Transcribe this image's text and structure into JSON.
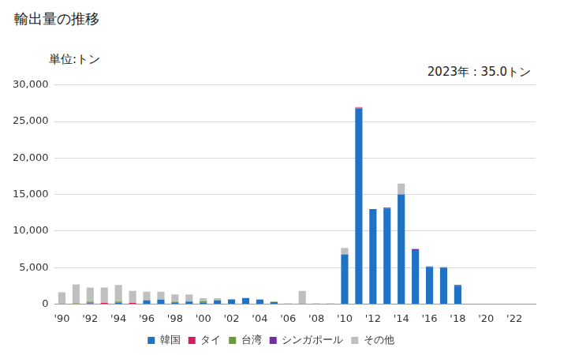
{
  "chart_data": {
    "type": "bar",
    "title": "輸出量の推移",
    "ylabel": "単位:トン",
    "annotations": [
      "2023年 : 35.0トン"
    ],
    "stacked": true,
    "grid": true,
    "legend": "bottom",
    "categories": [
      "'90",
      null,
      "'92",
      null,
      "'94",
      null,
      "'96",
      null,
      "'98",
      null,
      "'00",
      null,
      "'02",
      null,
      "'04",
      null,
      "'06",
      null,
      "'08",
      null,
      "'10",
      null,
      "'12",
      null,
      "'14",
      null,
      "'16",
      null,
      "'18",
      null,
      "'20",
      null,
      "'22",
      null
    ],
    "ylim": [
      0,
      30000
    ],
    "yticks": [
      0,
      {
        "value": 5000,
        "label": "5,000"
      },
      {
        "value": 10000,
        "label": "10,000"
      },
      {
        "value": 15000,
        "label": "15,000"
      },
      {
        "value": 20000,
        "label": "20,000"
      },
      {
        "value": 25000,
        "label": "25,000"
      },
      {
        "value": 30000,
        "label": "30,000"
      }
    ],
    "series": [
      {
        "name": "韓国",
        "color": "#1f72c4",
        "values": [
          0,
          0,
          100,
          0,
          200,
          0,
          500,
          600,
          150,
          350,
          200,
          500,
          600,
          800,
          600,
          250,
          0,
          0,
          0,
          0,
          6800,
          26800,
          13000,
          13100,
          15000,
          7400,
          5100,
          5000,
          2500,
          0,
          0,
          0,
          0,
          0
        ]
      },
      {
        "name": "タイ",
        "color": "#d81b60",
        "values": [
          0,
          0,
          100,
          150,
          0,
          150,
          0,
          0,
          0,
          0,
          0,
          0,
          0,
          0,
          0,
          0,
          0,
          0,
          0,
          0,
          0,
          100,
          0,
          0,
          0,
          0,
          0,
          0,
          0,
          0,
          0,
          0,
          0,
          0
        ]
      },
      {
        "name": "台湾",
        "color": "#6b9a3a",
        "values": [
          50,
          100,
          100,
          0,
          150,
          0,
          0,
          0,
          150,
          0,
          200,
          0,
          0,
          0,
          0,
          50,
          0,
          0,
          0,
          0,
          0,
          0,
          0,
          0,
          0,
          0,
          0,
          0,
          0,
          0,
          0,
          0,
          0,
          0
        ]
      },
      {
        "name": "シンガポール",
        "color": "#7030a0",
        "values": [
          0,
          0,
          0,
          0,
          0,
          0,
          0,
          0,
          0,
          0,
          0,
          0,
          0,
          0,
          0,
          0,
          0,
          0,
          0,
          0,
          0,
          0,
          0,
          100,
          0,
          100,
          0,
          0,
          100,
          0,
          0,
          0,
          0,
          0
        ]
      },
      {
        "name": "その他",
        "color": "#bfbfbf",
        "values": [
          1550,
          2600,
          1950,
          2100,
          2250,
          1650,
          1200,
          1100,
          1000,
          950,
          400,
          300,
          100,
          50,
          50,
          50,
          100,
          1800,
          100,
          100,
          900,
          100,
          0,
          0,
          1500,
          100,
          100,
          100,
          0,
          50,
          50,
          40,
          40,
          35
        ]
      }
    ]
  }
}
